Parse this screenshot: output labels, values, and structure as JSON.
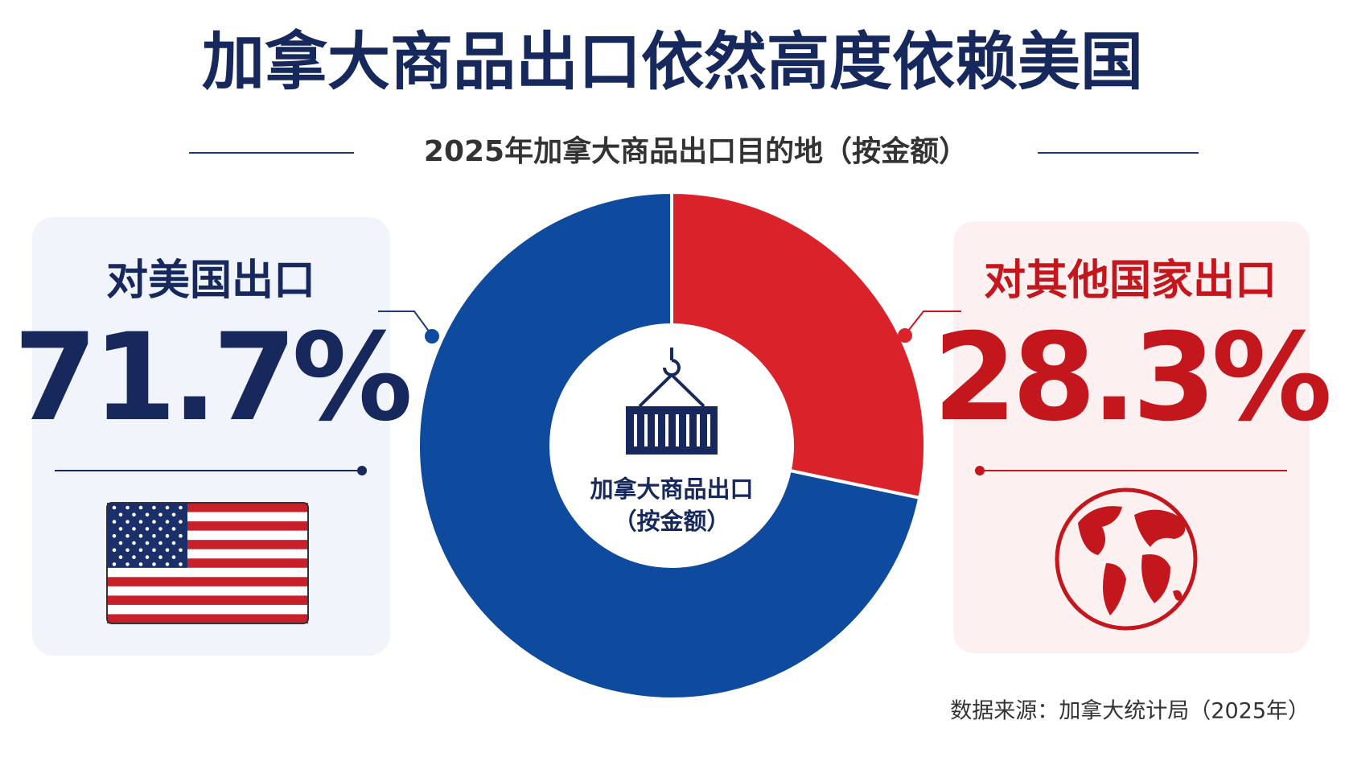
{
  "chart_data": {
    "type": "donut",
    "title": "加拿大商品出口依然高度依赖美国",
    "subtitle": "2025年加拿大商品出口目的地（按金额）",
    "center_label": [
      "加拿大商品出口",
      "（按金额）"
    ],
    "categories": [
      "对美国出口",
      "对其他国家出口"
    ],
    "values": [
      71.7,
      28.3
    ],
    "value_labels": [
      "71.7%",
      "28.3%"
    ],
    "colors": [
      "#0e4b9e",
      "#d9222a"
    ],
    "source": "数据来源：加拿大统计局（2025年）"
  }
}
